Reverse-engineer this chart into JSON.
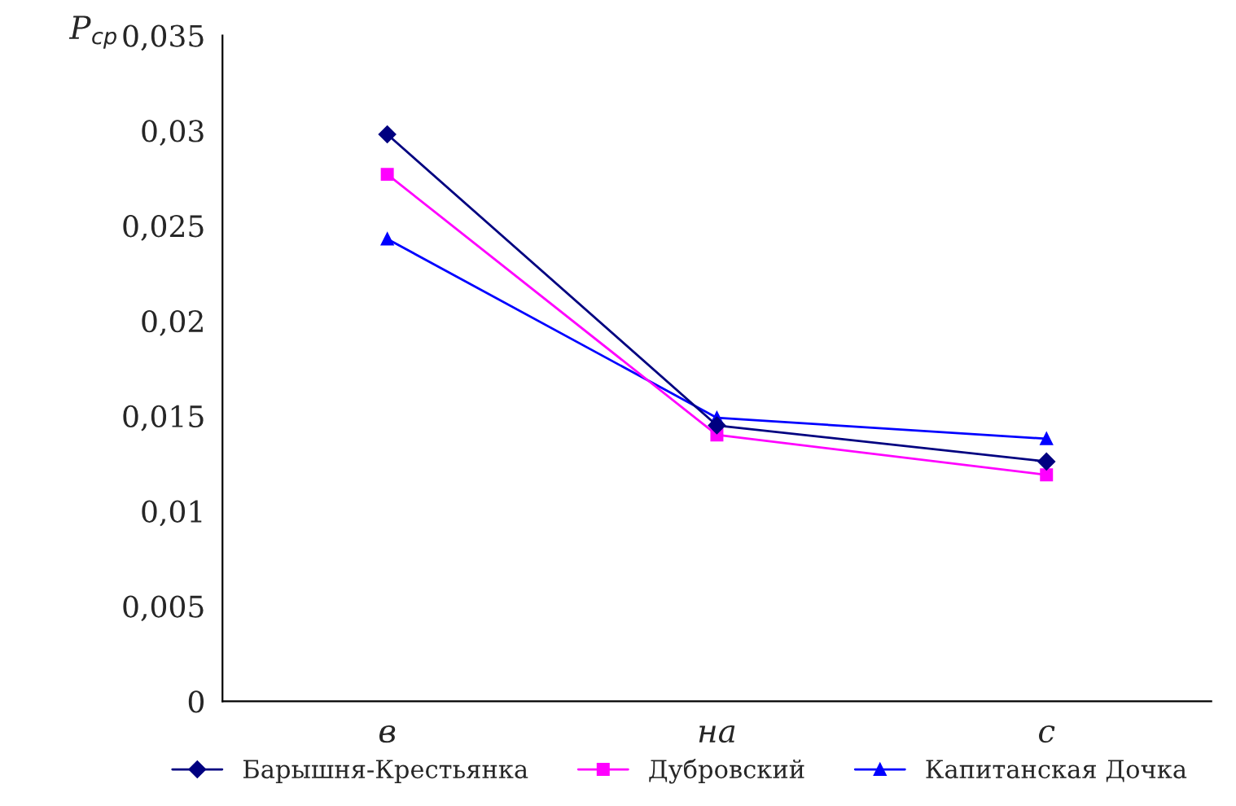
{
  "chart_data": {
    "type": "line",
    "ylabel": "P$_{ср}$",
    "categories": [
      "в",
      "на",
      "с"
    ],
    "series": [
      {
        "name": "Барышня-Крестьянка",
        "color": "#000080",
        "marker": "diamond",
        "values": [
          0.0298,
          0.0145,
          0.0126
        ]
      },
      {
        "name": "Дубровский",
        "color": "#ff00ff",
        "marker": "square",
        "values": [
          0.0277,
          0.014,
          0.0119
        ]
      },
      {
        "name": "Капитанская Дочка",
        "color": "#0000ff",
        "marker": "triangle",
        "values": [
          0.0243,
          0.0149,
          0.0138
        ]
      }
    ],
    "ylim": [
      0,
      0.035
    ],
    "yticks": [
      0,
      {
        "value": 0.005,
        "label": "0,005"
      },
      {
        "value": 0.01,
        "label": "0,01"
      },
      {
        "value": 0.015,
        "label": "0,015"
      },
      {
        "value": 0.02,
        "label": "0,02"
      },
      {
        "value": 0.025,
        "label": "0,025"
      },
      {
        "value": 0.03,
        "label": "0,03"
      },
      {
        "value": 0.035,
        "label": "0,035"
      }
    ],
    "grid": false,
    "legend": "bottom",
    "line_style": "solid"
  }
}
